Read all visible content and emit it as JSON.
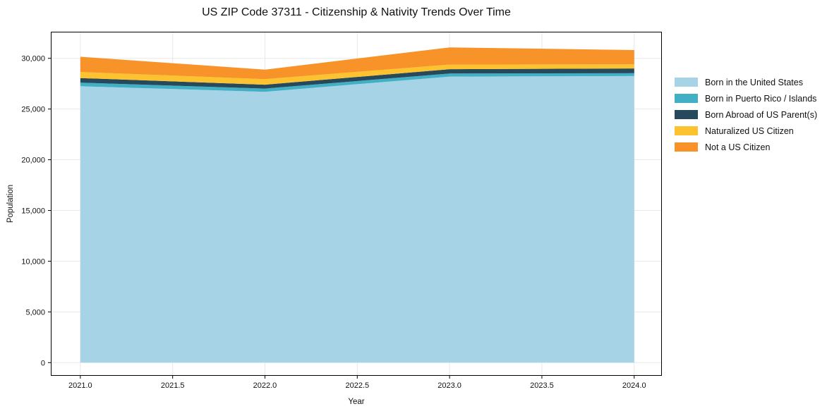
{
  "chart_data": {
    "type": "area",
    "stacked": true,
    "title": "US ZIP Code 37311 - Citizenship & Nativity Trends Over Time",
    "xlabel": "Year",
    "ylabel": "Population",
    "x": [
      2021,
      2022,
      2023,
      2024
    ],
    "series": [
      {
        "name": "Born in the United States",
        "color": "#a7d3e6",
        "values": [
          27250,
          26700,
          28200,
          28250
        ]
      },
      {
        "name": "Born in Puerto Rico / Islands",
        "color": "#41b0c5",
        "values": [
          350,
          320,
          300,
          280
        ]
      },
      {
        "name": "Born Abroad of US Parent(s)",
        "color": "#26495c",
        "values": [
          450,
          380,
          430,
          470
        ]
      },
      {
        "name": "Naturalized US Citizen",
        "color": "#fdc230",
        "values": [
          600,
          550,
          450,
          410
        ]
      },
      {
        "name": "Not a US Citizen",
        "color": "#f79329",
        "values": [
          1500,
          930,
          1700,
          1400
        ]
      }
    ],
    "totals": [
      30150,
      28880,
      31080,
      30810
    ],
    "xlim": [
      2020.84,
      2024.15
    ],
    "ylim": [
      -1300,
      32620
    ],
    "xticks": [
      2021.0,
      2021.5,
      2022.0,
      2022.5,
      2023.0,
      2023.5,
      2024.0
    ],
    "xtick_labels": [
      "2021.0",
      "2021.5",
      "2022.0",
      "2022.5",
      "2023.0",
      "2023.5",
      "2024.0"
    ],
    "yticks": [
      0,
      5000,
      10000,
      15000,
      20000,
      25000,
      30000
    ],
    "ytick_labels": [
      "0",
      "5,000",
      "10,000",
      "15,000",
      "20,000",
      "25,000",
      "30,000"
    ],
    "grid": true,
    "grid_color": "#e8e8e8",
    "spine_color": "#000000",
    "text_color": "#111111",
    "legend_position": "right"
  }
}
